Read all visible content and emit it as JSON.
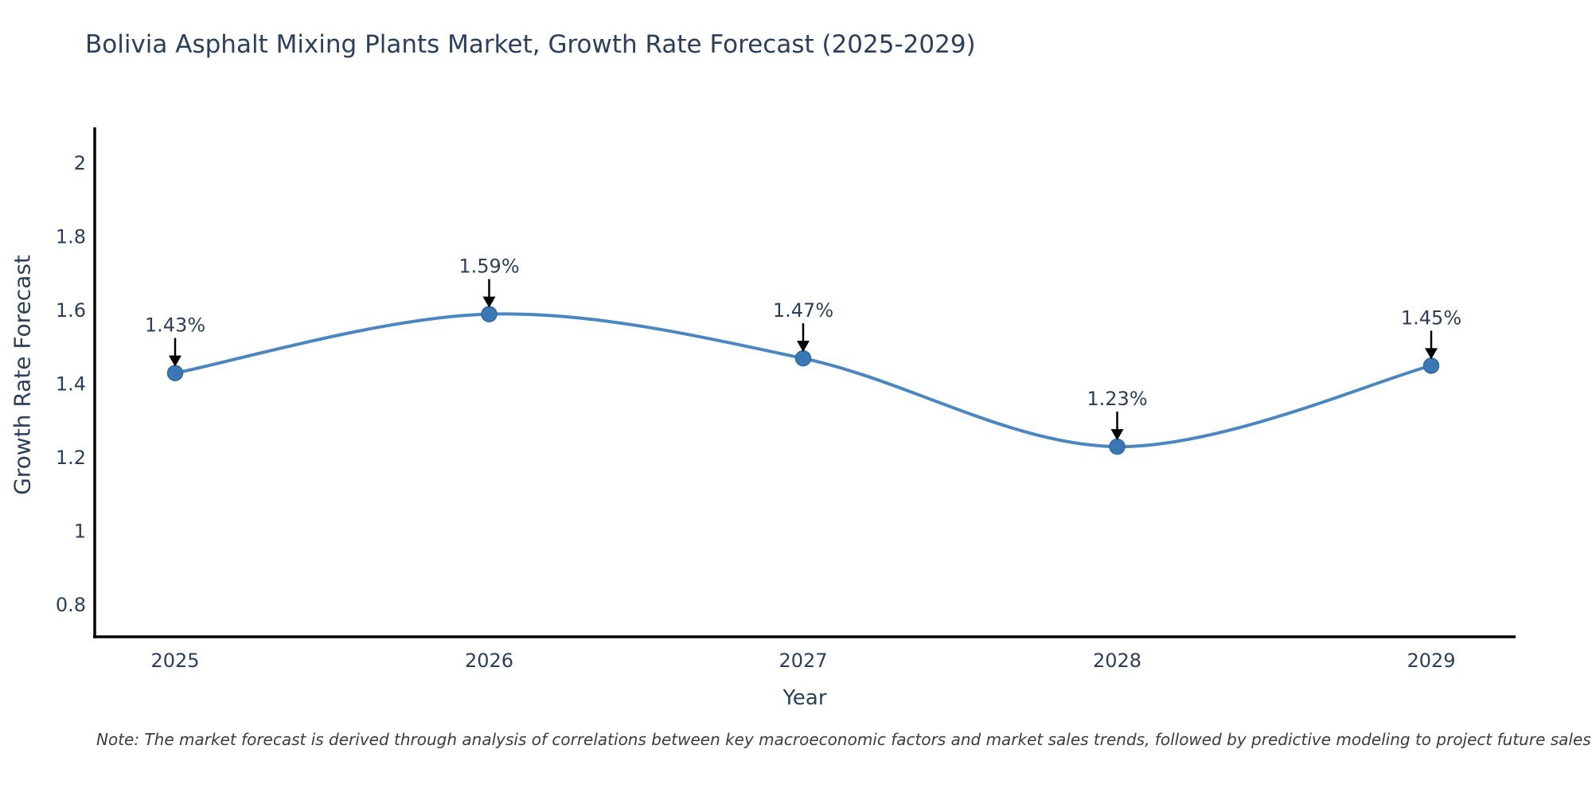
{
  "title": "Bolivia Asphalt Mixing Plants Market, Growth Rate Forecast (2025-2029)",
  "note": "Note: The market forecast is derived through analysis of correlations between key macroeconomic factors and market sales trends, followed by predictive modeling to project future sales",
  "chart_data": {
    "type": "line",
    "title": "Bolivia Asphalt Mixing Plants Market, Growth Rate Forecast (2025-2029)",
    "xlabel": "Year",
    "ylabel": "Growth Rate Forecast",
    "categories": [
      "2025",
      "2026",
      "2027",
      "2028",
      "2029"
    ],
    "series": [
      {
        "name": "Growth Rate Forecast",
        "values": [
          1.43,
          1.59,
          1.47,
          1.23,
          1.45
        ]
      }
    ],
    "point_labels": [
      "1.43%",
      "1.59%",
      "1.47%",
      "1.23%",
      "1.45%"
    ],
    "y_ticks": [
      0.8,
      1,
      1.2,
      1.4,
      1.6,
      1.8,
      2
    ],
    "ylim": [
      0.71,
      2.1
    ],
    "grid": false,
    "legend_position": "none",
    "line_shape": "spline",
    "colors": {
      "line": "#4a86c0",
      "marker": "#3a78b5",
      "marker_edge": "#2f6aa3",
      "axis": "#000000",
      "text": "#2a3f5f",
      "arrow": "#000000"
    }
  }
}
